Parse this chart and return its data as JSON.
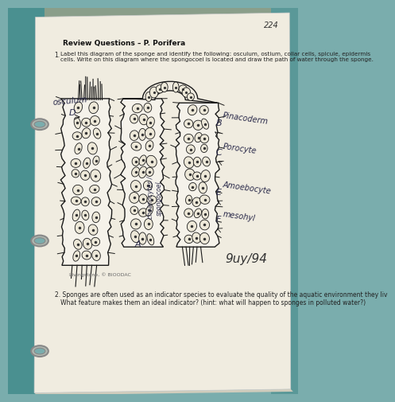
{
  "page_number": "224",
  "bg_top_color": "#8B9B8A",
  "bg_binder_color": "#4a8a8a",
  "paper_color": "#f0ece0",
  "paper_shadow": "#d4cfc0",
  "title": "Review Questions – P. Porifera",
  "q1_label": "1.",
  "q1_text": "Label this diagram of the sponge and identify the following: osculum, ostium, collar cells, spicule, epidermis\ncells. Write on this diagram where the spongocoel is located and draw the path of water through the sponge.",
  "q2_text": "2. Sponges are often used as an indicator species to evaluate the quality of the aquatic environment they liv\n   What feature makes them an ideal indicator? (hint: what will happen to sponges in polluted water?)",
  "copyright": "Livingstone, © BIOODAC",
  "grade": "9uy/94",
  "ink_color": "#1a1a1a",
  "label_color": "#2a2a4a"
}
